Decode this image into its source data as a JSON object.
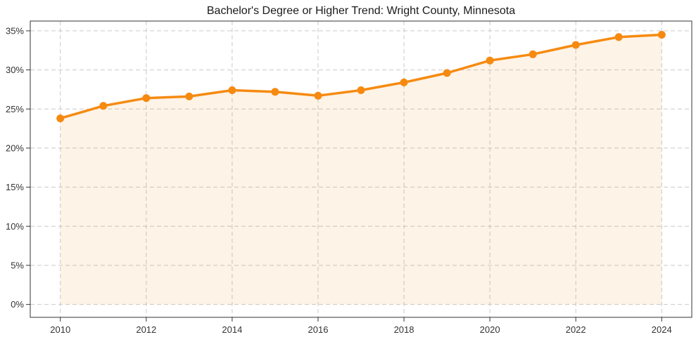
{
  "figure": {
    "title": "Bachelor's Degree or Higher Trend: Wright County, Minnesota"
  },
  "chart_data": {
    "type": "line",
    "title": "Bachelor's Degree or Higher Trend: Wright County, Minnesota",
    "series_name": "Bachelor's degree or higher (%)",
    "x": [
      2010,
      2011,
      2012,
      2013,
      2014,
      2015,
      2016,
      2017,
      2018,
      2019,
      2020,
      2021,
      2022,
      2023,
      2024
    ],
    "values": [
      23.8,
      25.4,
      26.4,
      26.6,
      27.4,
      27.2,
      26.7,
      27.4,
      28.4,
      29.6,
      31.2,
      32.0,
      33.2,
      34.2,
      34.5
    ],
    "xlabel": "",
    "ylabel": "",
    "x_tick_values": [
      2010,
      2012,
      2014,
      2016,
      2018,
      2020,
      2022,
      2024
    ],
    "x_tick_labels": [
      "2010",
      "2012",
      "2014",
      "2016",
      "2018",
      "2020",
      "2022",
      "2024"
    ],
    "y_tick_values": [
      0,
      5,
      10,
      15,
      20,
      25,
      30,
      35
    ],
    "y_tick_labels": [
      "0%",
      "5%",
      "10%",
      "15%",
      "20%",
      "25%",
      "30%",
      "35%"
    ],
    "xlim": [
      2009.3,
      2024.7
    ],
    "ylim": [
      -1.65,
      36.25
    ],
    "grid": true,
    "grid_style": "dashed",
    "legend": false,
    "area_fill_to_zero": true,
    "marker": "circle",
    "colors": {
      "line": "#f68a10",
      "marker": "#f68a10",
      "fill": "rgba(246,138,16,0.10)",
      "grid": "#c9c9c9",
      "spine": "#333333",
      "tick": "#333333",
      "tick_label": "#333333",
      "title": "#1a1a1a",
      "background": "#ffffff"
    }
  }
}
